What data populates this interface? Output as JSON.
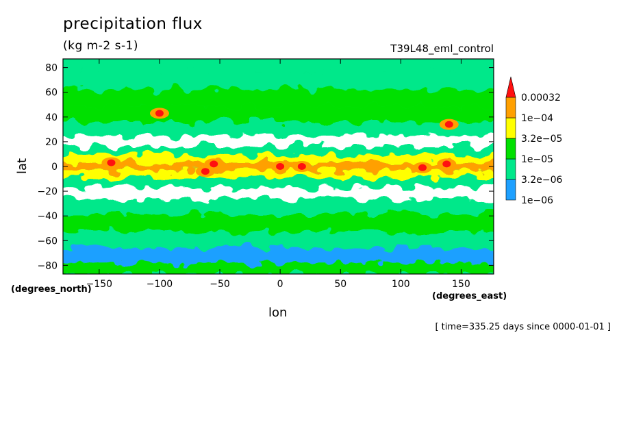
{
  "chart_data": {
    "type": "heatmap",
    "title": "precipitation flux",
    "units": "(kg m-2 s-1)",
    "dataset": "T39L48_eml_control",
    "xlabel": "lon",
    "ylabel": "lat",
    "x_units": "(degrees_east)",
    "y_units": "(degrees_north)",
    "xlim": [
      -180,
      177
    ],
    "ylim": [
      -87,
      87
    ],
    "x_ticks": [
      -150,
      -100,
      -50,
      0,
      50,
      100,
      150
    ],
    "y_ticks": [
      80,
      60,
      40,
      20,
      0,
      -20,
      -40,
      -60,
      -80
    ],
    "time_label": "[ time=335.25 days since 0000-01-01 ]",
    "levels": [
      "1e-06",
      "3.2e-06",
      "1e-05",
      "3.2e-05",
      "1e-04",
      "0.00032"
    ],
    "colors": [
      "#ffffff",
      "#1ea0ff",
      "#00e88a",
      "#00e000",
      "#ffff00",
      "#ffa000",
      "#ff1010"
    ],
    "lat_bands": [
      {
        "lat": 85,
        "level": 2
      },
      {
        "lat": 70,
        "level": 2
      },
      {
        "lat": 55,
        "level": 3
      },
      {
        "lat": 42,
        "level": 3
      },
      {
        "lat": 30,
        "level": 2
      },
      {
        "lat": 20,
        "level": 0
      },
      {
        "lat": 12,
        "level": 2
      },
      {
        "lat": 6,
        "level": 4
      },
      {
        "lat": 0,
        "level": 5
      },
      {
        "lat": -6,
        "level": 4
      },
      {
        "lat": -12,
        "level": 2
      },
      {
        "lat": -22,
        "level": 0
      },
      {
        "lat": -32,
        "level": 2
      },
      {
        "lat": -45,
        "level": 3
      },
      {
        "lat": -60,
        "level": 2
      },
      {
        "lat": -72,
        "level": 1
      },
      {
        "lat": -84,
        "level": 3
      }
    ],
    "maxima": [
      {
        "lon": -140,
        "lat": 3,
        "level": 6
      },
      {
        "lon": -55,
        "lat": 2,
        "level": 6
      },
      {
        "lon": -62,
        "lat": -4,
        "level": 6
      },
      {
        "lon": 0,
        "lat": 0,
        "level": 6
      },
      {
        "lon": 18,
        "lat": 0,
        "level": 6
      },
      {
        "lon": 118,
        "lat": -1,
        "level": 6
      },
      {
        "lon": 138,
        "lat": 2,
        "level": 6
      },
      {
        "lon": 140,
        "lat": 34,
        "level": 6
      },
      {
        "lon": -100,
        "lat": 43,
        "level": 6
      }
    ]
  }
}
